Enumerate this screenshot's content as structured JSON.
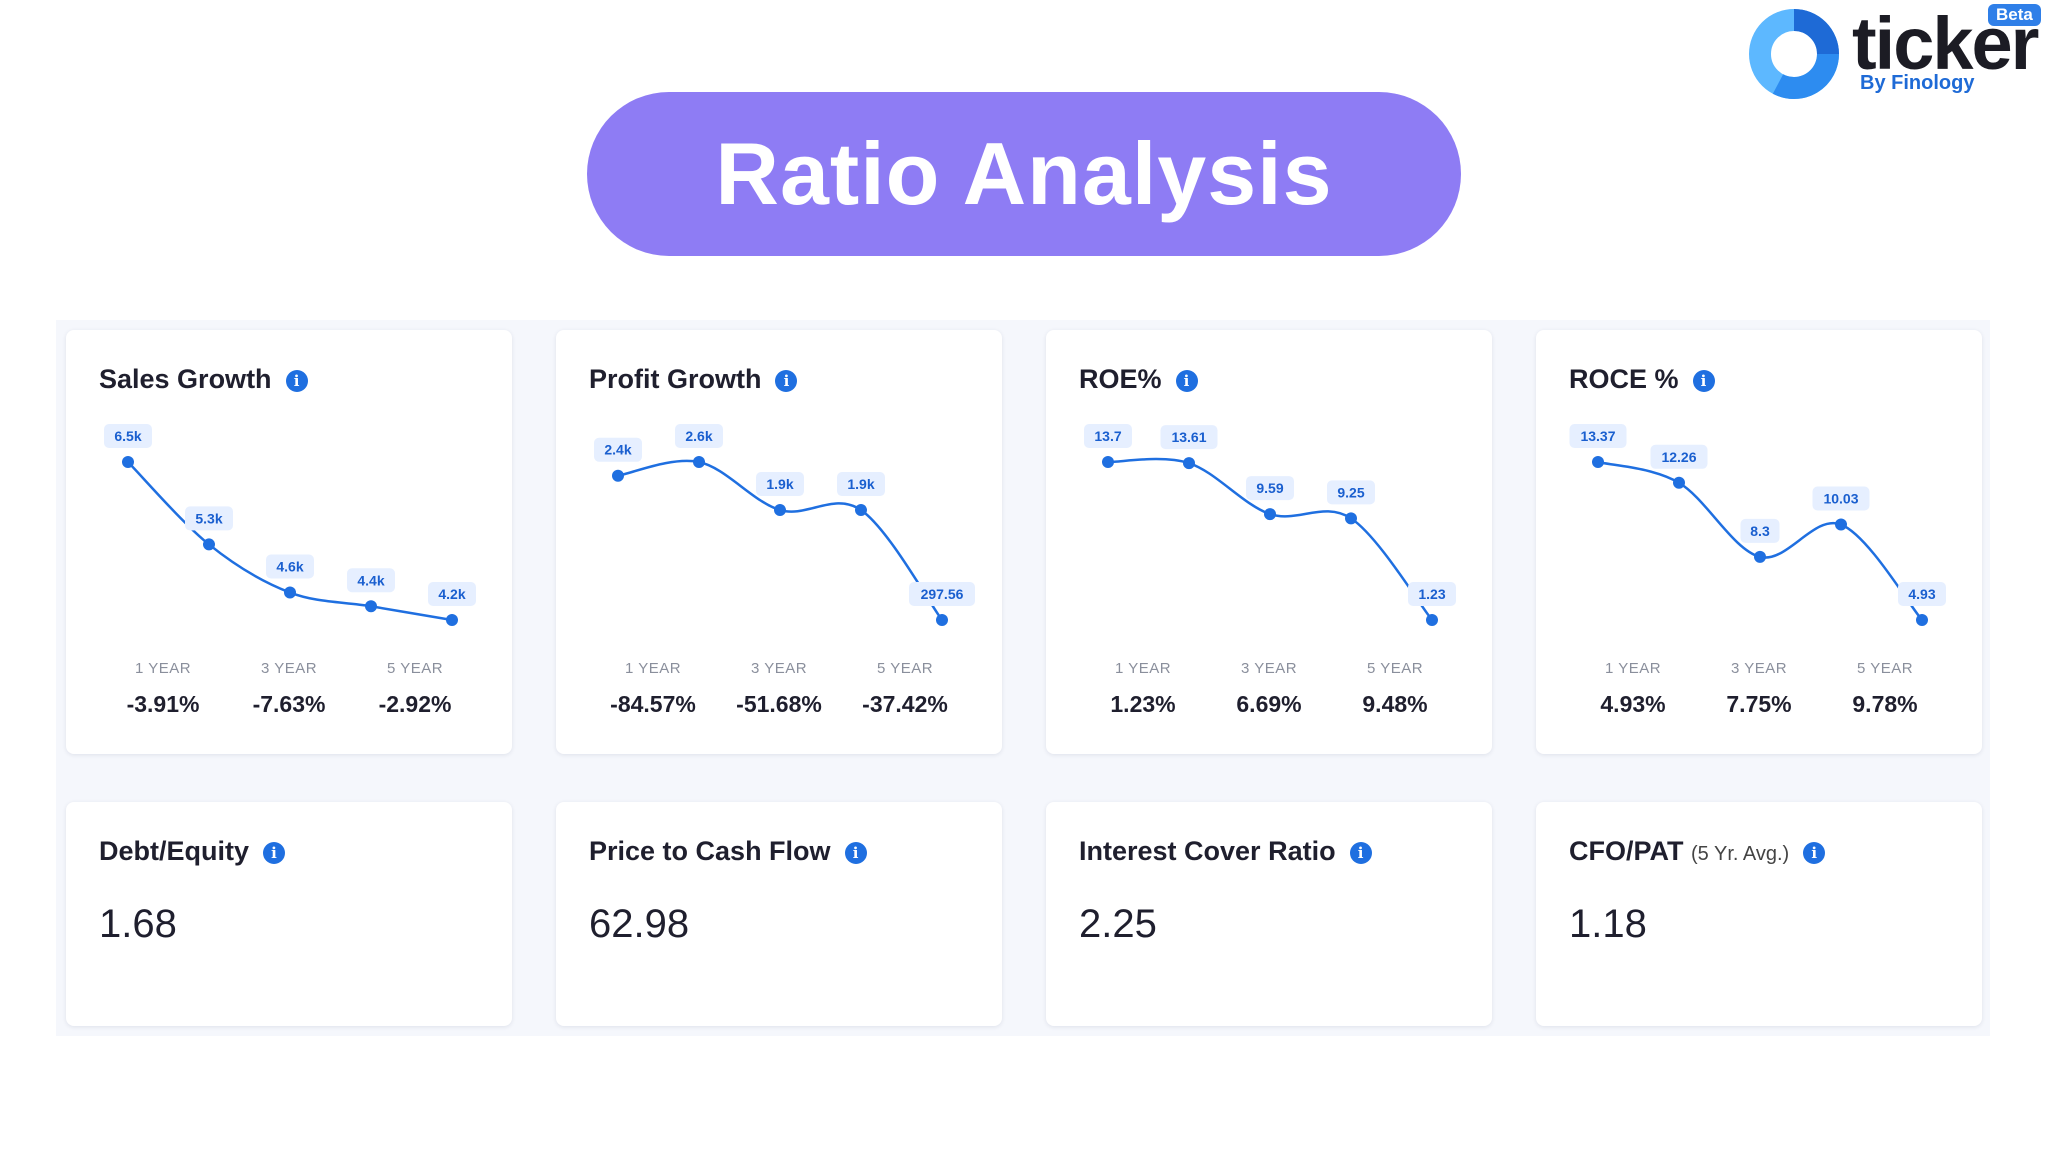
{
  "logo": {
    "name": "ticker",
    "byline": "By Finology",
    "badge": "Beta"
  },
  "title": "Ratio Analysis",
  "period_labels": [
    "1 YEAR",
    "3 YEAR",
    "5 YEAR"
  ],
  "colors": {
    "line": "#1f6fe0",
    "label_bg": "#e6efff",
    "label_text": "#1a5fcf",
    "pill": "#8e7cf4"
  },
  "chart_cards": [
    {
      "title": "Sales Growth",
      "points": [
        "6.5k",
        "5.3k",
        "4.6k",
        "4.4k",
        "4.2k"
      ],
      "point_values": [
        6500,
        5300,
        4600,
        4400,
        4200
      ],
      "periods": [
        "-3.91%",
        "-7.63%",
        "-2.92%"
      ]
    },
    {
      "title": "Profit Growth",
      "points": [
        "2.4k",
        "2.6k",
        "1.9k",
        "1.9k",
        "297.56"
      ],
      "point_values": [
        2400,
        2600,
        1900,
        1900,
        297.56
      ],
      "periods": [
        "-84.57%",
        "-51.68%",
        "-37.42%"
      ]
    },
    {
      "title": "ROE%",
      "points": [
        "13.7",
        "13.61",
        "9.59",
        "9.25",
        "1.23"
      ],
      "point_values": [
        13.7,
        13.61,
        9.59,
        9.25,
        1.23
      ],
      "periods": [
        "1.23%",
        "6.69%",
        "9.48%"
      ]
    },
    {
      "title": "ROCE %",
      "points": [
        "13.37",
        "12.26",
        "8.3",
        "10.03",
        "4.93"
      ],
      "point_values": [
        13.37,
        12.26,
        8.3,
        10.03,
        4.93
      ],
      "periods": [
        "4.93%",
        "7.75%",
        "9.78%"
      ]
    }
  ],
  "value_cards": [
    {
      "title": "Debt/Equity",
      "subtitle": "",
      "value": "1.68"
    },
    {
      "title": "Price to Cash Flow",
      "subtitle": "",
      "value": "62.98"
    },
    {
      "title": "Interest Cover Ratio",
      "subtitle": "",
      "value": "2.25"
    },
    {
      "title": "CFO/PAT",
      "subtitle": "(5 Yr. Avg.)",
      "value": "1.18"
    }
  ]
}
